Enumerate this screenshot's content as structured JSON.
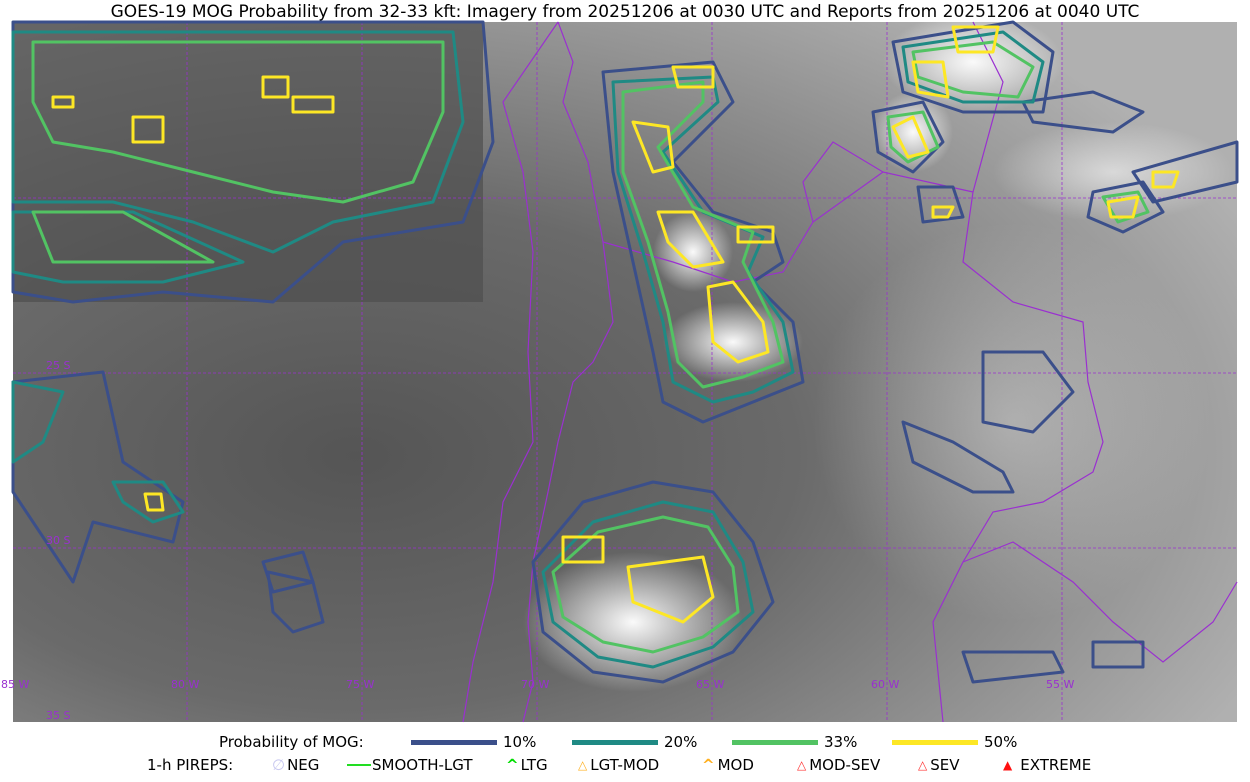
{
  "title": "GOES-19 MOG Probability from 32-33 kft: Imagery from 20251206 at 0030 UTC and Reports from 20251206 at 0040 UTC",
  "map": {
    "longitude_labels": [
      "85 W",
      "80 W",
      "75 W",
      "70 W",
      "65 W",
      "60 W",
      "55 W"
    ],
    "latitude_labels": [
      "25 S",
      "30 S",
      "35 S"
    ],
    "gridline_color": "#9a30d0",
    "border_color": "#9a30d0"
  },
  "legend": {
    "probability_label": "Probability of MOG:",
    "levels": [
      {
        "label": "10%",
        "color": "#3b4f8a"
      },
      {
        "label": "20%",
        "color": "#1f8a84"
      },
      {
        "label": "33%",
        "color": "#52c363"
      },
      {
        "label": "50%",
        "color": "#fde725"
      }
    ],
    "pireps_label": "1-h PIREPS:",
    "pireps": [
      {
        "label": "NEG",
        "icon": "neg-icon",
        "color": "#c8c8f0"
      },
      {
        "label": "SMOOTH-LGT",
        "icon": "line-icon",
        "color": "#22dd22"
      },
      {
        "label": "LTG",
        "icon": "caret-icon",
        "color": "#00dd00"
      },
      {
        "label": "LGT-MOD",
        "icon": "caret-bar-icon",
        "color": "#ffb020"
      },
      {
        "label": "MOD",
        "icon": "caret-icon",
        "color": "#ffb020"
      },
      {
        "label": "MOD-SEV",
        "icon": "double-caret-bar-icon",
        "color": "#ff3030"
      },
      {
        "label": "SEV",
        "icon": "double-caret-icon",
        "color": "#ff3030"
      },
      {
        "label": "EXTREME",
        "icon": "filled-triangle-icon",
        "color": "#ff1010"
      }
    ]
  }
}
